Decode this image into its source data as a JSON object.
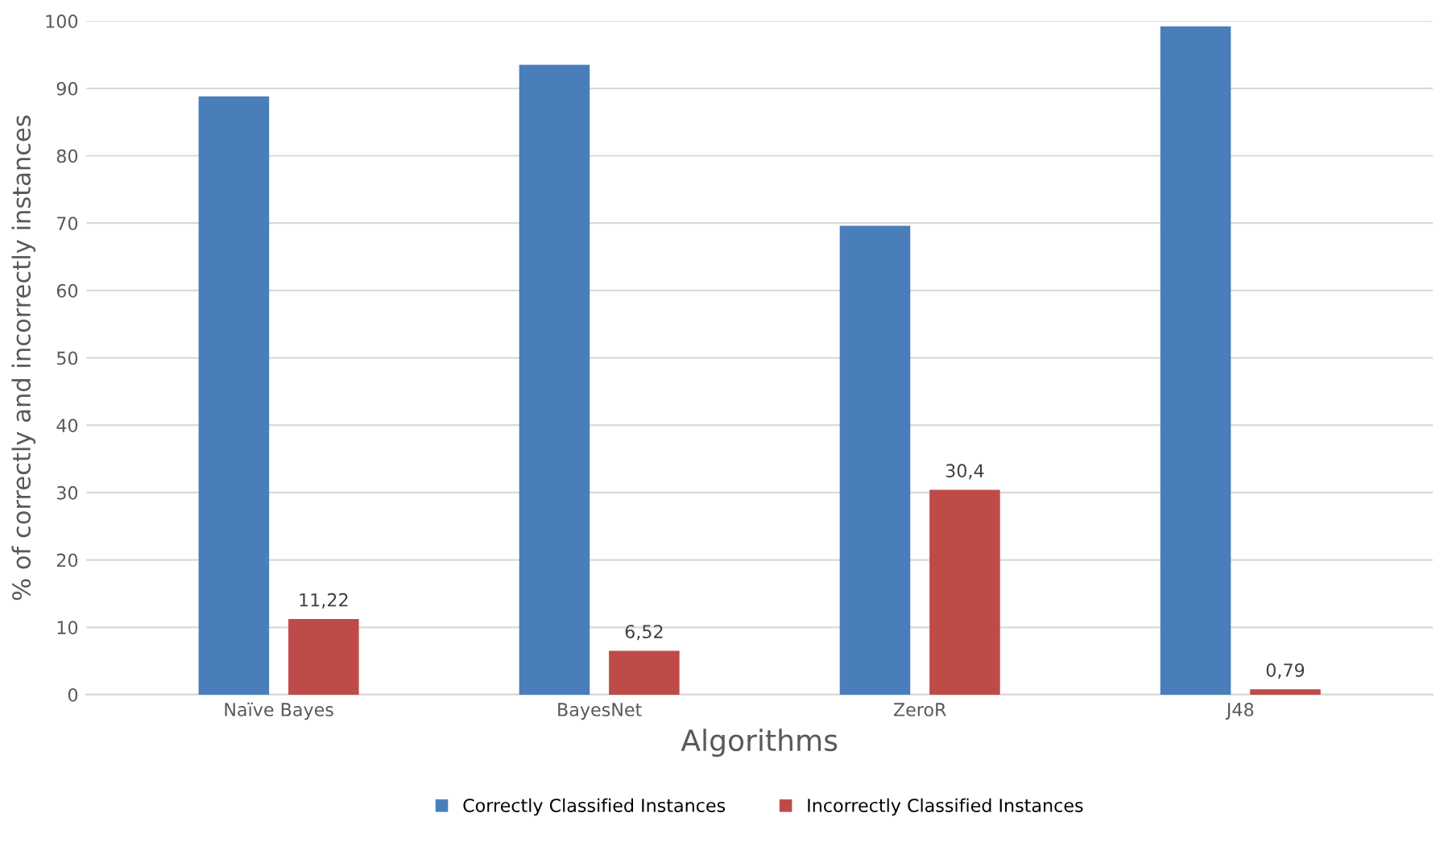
{
  "chart_data": {
    "type": "bar",
    "xlabel": "Algorithms",
    "ylabel": "% of correctly and incorrectly instances",
    "categories": [
      "Naïve Bayes",
      "BayesNet",
      "ZeroR",
      "J48"
    ],
    "series": [
      {
        "name": "Correctly Classified Instances",
        "color": "#4a7ebb",
        "values": [
          88.8,
          93.5,
          69.6,
          99.2
        ]
      },
      {
        "name": "Incorrectly Classified Instances",
        "color": "#be4b48",
        "values": [
          11.22,
          6.52,
          30.4,
          0.79
        ],
        "value_labels": [
          "11,22",
          "6,52",
          "30,4",
          "0,79"
        ]
      }
    ],
    "ylim": [
      0,
      100
    ],
    "yticks": [
      0,
      10,
      20,
      30,
      40,
      50,
      60,
      70,
      80,
      90,
      100
    ],
    "grid": "y",
    "legend": "bottom"
  }
}
